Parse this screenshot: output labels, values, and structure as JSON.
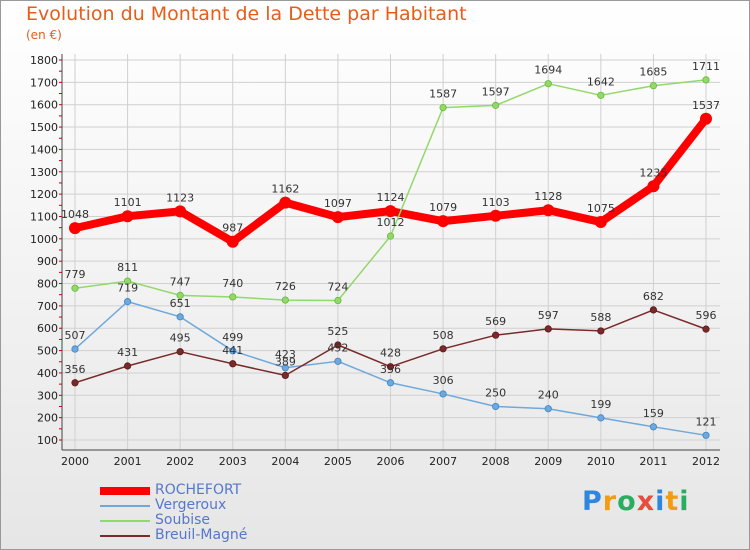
{
  "title": "Evolution du Montant de la Dette par Habitant",
  "subtitle": "(en €)",
  "logo": {
    "text": "Proxiti",
    "letters": [
      "P",
      "r",
      "o",
      "x",
      "i",
      "t",
      "i"
    ],
    "colors": [
      "#2e86de",
      "#f39c12",
      "#27ae60",
      "#e74c3c",
      "#2e86de",
      "#f39c12",
      "#27ae60"
    ]
  },
  "chart_data": {
    "type": "line",
    "title": "Evolution du Montant de la Dette par Habitant",
    "ylabel": "(en €)",
    "xlabel": "",
    "ylim": [
      100,
      1800
    ],
    "yticks": [
      100,
      200,
      300,
      400,
      500,
      600,
      700,
      800,
      900,
      1000,
      1100,
      1200,
      1300,
      1400,
      1500,
      1600,
      1700,
      1800
    ],
    "grid": true,
    "legend": "bottom-left",
    "x": [
      "2000",
      "2001",
      "2002",
      "2003",
      "2004",
      "2005",
      "2006",
      "2007",
      "2008",
      "2009",
      "2010",
      "2011",
      "2012"
    ],
    "series": [
      {
        "name": "ROCHEFORT",
        "color": "#ff0000",
        "dot": "#dd0000",
        "width": 8,
        "values": [
          1048,
          1101,
          1123,
          987,
          1162,
          1097,
          1124,
          1079,
          1103,
          1128,
          1075,
          1235,
          1537
        ],
        "labels": [
          "1048",
          "1101",
          "1123",
          "987",
          "1162",
          "1097",
          "1124",
          "1079",
          "1103",
          "1128",
          "1075",
          "1235",
          "1537"
        ]
      },
      {
        "name": "Vergeroux",
        "color": "#6fa8dc",
        "dot": "#3d85c6",
        "width": 1.5,
        "values": [
          507,
          719,
          651,
          499,
          423,
          452,
          356,
          306,
          250,
          240,
          199,
          159,
          121
        ],
        "labels": [
          "507",
          "719",
          "651",
          "499",
          "423",
          "452",
          "356",
          "306",
          "250",
          "240",
          "199",
          "159",
          "121"
        ]
      },
      {
        "name": "Soubise",
        "color": "#93d86a",
        "dot": "#66bb33",
        "width": 1.5,
        "values": [
          779,
          811,
          747,
          740,
          726,
          724,
          1012,
          1587,
          1597,
          1694,
          1642,
          1685,
          1711
        ],
        "labels": [
          "779",
          "811",
          "747",
          "740",
          "726",
          "724",
          "1012",
          "1587",
          "1597",
          "1694",
          "1642",
          "1685",
          "1711"
        ]
      },
      {
        "name": "Breuil-Magné",
        "color": "#7a2a2a",
        "dot": "#5a1a1a",
        "width": 1.5,
        "values": [
          356,
          431,
          495,
          441,
          389,
          525,
          428,
          508,
          569,
          597,
          588,
          682,
          596
        ],
        "labels": [
          "356",
          "431",
          "495",
          "441",
          "389",
          "525",
          "428",
          "508",
          "569",
          "597",
          "588",
          "682",
          "596"
        ]
      }
    ]
  }
}
